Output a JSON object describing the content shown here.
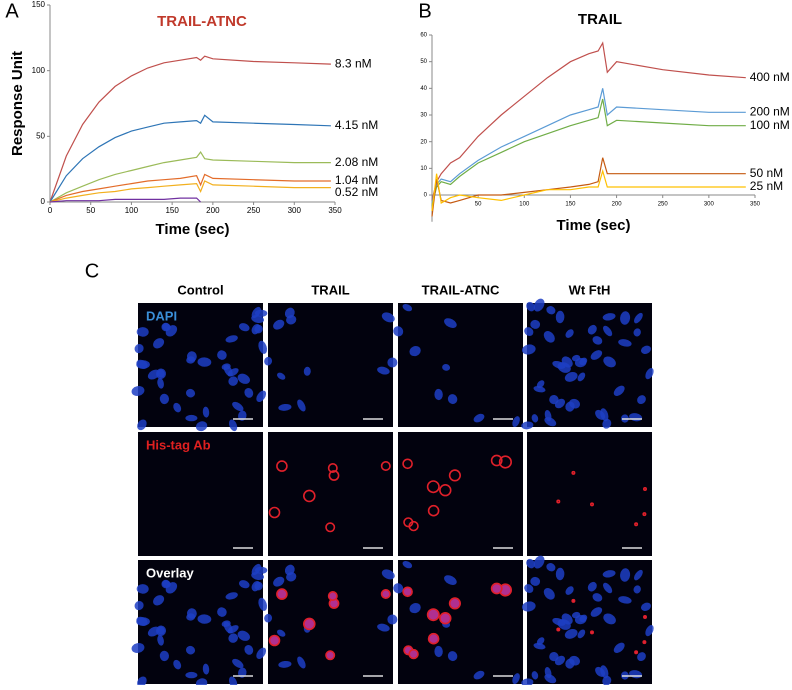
{
  "chart_data": [
    {
      "type": "line",
      "panel": "A",
      "title": "TRAIL-ATNC",
      "y_label": "Response Unit",
      "x_label": "Time (sec)",
      "x": [
        0,
        20,
        40,
        60,
        80,
        100,
        120,
        140,
        160,
        180,
        185,
        190,
        200,
        250,
        300,
        345
      ],
      "xlim": [
        0,
        350
      ],
      "xticks": [
        0,
        50,
        100,
        150,
        200,
        250,
        300,
        350
      ],
      "ylim": [
        0,
        150
      ],
      "yticks": [
        0,
        50,
        100,
        150
      ],
      "series": [
        {
          "name": "8.3 nM",
          "color": "#c0504d",
          "values": [
            0,
            35,
            59,
            76,
            88,
            96,
            102,
            106,
            108,
            110,
            108,
            111,
            109,
            107,
            106,
            105
          ]
        },
        {
          "name": "4.15 nM",
          "color": "#2e75b6",
          "values": [
            0,
            20,
            33,
            42,
            49,
            54,
            57,
            60,
            61,
            62,
            60,
            66,
            61,
            60,
            59,
            58
          ]
        },
        {
          "name": "2.08 nM",
          "color": "#9bbb59",
          "values": [
            0,
            7,
            12,
            17,
            21,
            24,
            27,
            30,
            32,
            34,
            38,
            33,
            32,
            31,
            30,
            30
          ]
        },
        {
          "name": "1.04 nM",
          "color": "#e36c2a",
          "values": [
            0,
            5,
            8,
            10,
            12,
            14,
            16,
            17,
            18,
            20,
            13,
            21,
            18,
            17,
            16,
            16
          ]
        },
        {
          "name": "0.52 nM",
          "color": "#f2b01e",
          "values": [
            0,
            3,
            5,
            7,
            8,
            10,
            11,
            12,
            13,
            14,
            8,
            16,
            13,
            12,
            11,
            11
          ]
        },
        {
          "color": "#7030a0",
          "values": [
            0,
            1,
            1,
            1,
            2,
            2,
            2,
            2,
            3,
            3,
            0,
            null,
            null,
            null,
            null,
            null
          ]
        }
      ]
    },
    {
      "type": "line",
      "panel": "B",
      "title": "TRAIL",
      "x_label": "Time (sec)",
      "x": [
        0,
        5,
        10,
        20,
        30,
        50,
        75,
        100,
        125,
        150,
        170,
        180,
        185,
        190,
        200,
        250,
        300,
        340
      ],
      "xlim": [
        0,
        350
      ],
      "xticks": [
        50,
        100,
        150,
        200,
        250,
        300,
        350
      ],
      "ylim": [
        -10,
        60
      ],
      "yticks": [
        0,
        10,
        20,
        30,
        40,
        50,
        60
      ],
      "series": [
        {
          "name": "400 nM",
          "color": "#c0504d",
          "values": [
            -2,
            5,
            8,
            12,
            14,
            22,
            30,
            37,
            44,
            50,
            53,
            54,
            57,
            46,
            50,
            47,
            45,
            44
          ]
        },
        {
          "name": "200 nM",
          "color": "#5b9bd5",
          "values": [
            -3,
            4,
            6,
            5,
            8,
            13,
            18,
            22,
            26,
            30,
            32,
            33,
            40,
            30,
            33,
            32,
            31,
            31
          ]
        },
        {
          "name": "100 nM",
          "color": "#70ad47",
          "values": [
            -4,
            3,
            5,
            4,
            7,
            12,
            16,
            20,
            23,
            26,
            28,
            29,
            36,
            26,
            28,
            27,
            26,
            26
          ]
        },
        {
          "name": "50 nM",
          "color": "#c55a11",
          "values": [
            -8,
            6,
            -2,
            -3,
            -2,
            0,
            0,
            1,
            2,
            3,
            4,
            5,
            14,
            8,
            8,
            8,
            8,
            8
          ]
        },
        {
          "name": "25 nM",
          "color": "#ffc000",
          "values": [
            -6,
            8,
            -3,
            -1,
            0,
            -1,
            -2,
            0,
            2,
            2,
            3,
            3,
            9,
            3,
            3,
            3,
            3,
            3
          ]
        }
      ]
    }
  ],
  "microscopy": {
    "panel": "C",
    "columns": [
      "Control",
      "TRAIL",
      "TRAIL-ATNC",
      "Wt FtH"
    ],
    "rows": [
      "DAPI",
      "His-tag Ab",
      "Overlay"
    ]
  }
}
